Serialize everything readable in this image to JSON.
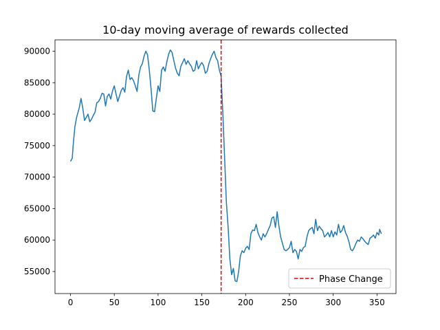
{
  "chart_data": {
    "type": "line",
    "title": "10-day moving average of rewards collected",
    "xlabel": "",
    "ylabel": "",
    "xlim": [
      -17.7,
      371.7
    ],
    "ylim": [
      51500,
      91800
    ],
    "xticks": [
      0,
      50,
      100,
      150,
      200,
      250,
      300,
      350
    ],
    "yticks": [
      55000,
      60000,
      65000,
      70000,
      75000,
      80000,
      85000,
      90000
    ],
    "grid": false,
    "legend": {
      "placement": "lower-right",
      "entries": [
        "Phase Change"
      ]
    },
    "vline": {
      "name": "Phase Change",
      "x": 172,
      "color": "#e60000",
      "style": "dashed"
    },
    "series": [
      {
        "color": "#1f77b4",
        "points": [
          [
            0,
            72500
          ],
          [
            2,
            73000
          ],
          [
            3,
            75000
          ],
          [
            5,
            78000
          ],
          [
            7,
            79500
          ],
          [
            9,
            80500
          ],
          [
            10,
            81000
          ],
          [
            12,
            82500
          ],
          [
            14,
            81000
          ],
          [
            16,
            79000
          ],
          [
            18,
            79500
          ],
          [
            20,
            80000
          ],
          [
            22,
            78800
          ],
          [
            24,
            79200
          ],
          [
            26,
            79800
          ],
          [
            28,
            80300
          ],
          [
            30,
            81800
          ],
          [
            32,
            82000
          ],
          [
            34,
            82500
          ],
          [
            36,
            83300
          ],
          [
            38,
            83200
          ],
          [
            40,
            81300
          ],
          [
            42,
            82800
          ],
          [
            44,
            83200
          ],
          [
            46,
            82400
          ],
          [
            48,
            83700
          ],
          [
            50,
            84500
          ],
          [
            52,
            83200
          ],
          [
            54,
            82000
          ],
          [
            56,
            82900
          ],
          [
            58,
            83800
          ],
          [
            60,
            84200
          ],
          [
            62,
            83500
          ],
          [
            64,
            86000
          ],
          [
            66,
            87000
          ],
          [
            68,
            85500
          ],
          [
            70,
            85800
          ],
          [
            72,
            85300
          ],
          [
            74,
            84500
          ],
          [
            76,
            83600
          ],
          [
            78,
            86200
          ],
          [
            80,
            87500
          ],
          [
            82,
            88000
          ],
          [
            84,
            89200
          ],
          [
            86,
            90000
          ],
          [
            88,
            89400
          ],
          [
            90,
            87000
          ],
          [
            92,
            84000
          ],
          [
            94,
            80500
          ],
          [
            96,
            80400
          ],
          [
            98,
            82500
          ],
          [
            100,
            84500
          ],
          [
            102,
            83600
          ],
          [
            104,
            87000
          ],
          [
            106,
            87500
          ],
          [
            108,
            86800
          ],
          [
            110,
            88300
          ],
          [
            112,
            89500
          ],
          [
            114,
            90200
          ],
          [
            116,
            89800
          ],
          [
            118,
            88500
          ],
          [
            120,
            87300
          ],
          [
            122,
            86500
          ],
          [
            124,
            86100
          ],
          [
            126,
            87600
          ],
          [
            128,
            88200
          ],
          [
            130,
            88800
          ],
          [
            132,
            87900
          ],
          [
            134,
            88500
          ],
          [
            136,
            88000
          ],
          [
            138,
            87600
          ],
          [
            140,
            86800
          ],
          [
            142,
            87000
          ],
          [
            144,
            88500
          ],
          [
            146,
            87200
          ],
          [
            148,
            87800
          ],
          [
            150,
            88200
          ],
          [
            152,
            87700
          ],
          [
            154,
            86500
          ],
          [
            156,
            86800
          ],
          [
            158,
            88000
          ],
          [
            160,
            88800
          ],
          [
            162,
            89500
          ],
          [
            164,
            90000
          ],
          [
            166,
            89000
          ],
          [
            168,
            88500
          ],
          [
            170,
            87000
          ],
          [
            172,
            86000
          ],
          [
            174,
            80000
          ],
          [
            176,
            73000
          ],
          [
            178,
            66000
          ],
          [
            180,
            62000
          ],
          [
            182,
            57000
          ],
          [
            184,
            54500
          ],
          [
            186,
            55500
          ],
          [
            188,
            53500
          ],
          [
            190,
            53400
          ],
          [
            192,
            55000
          ],
          [
            194,
            57500
          ],
          [
            196,
            58300
          ],
          [
            198,
            58000
          ],
          [
            200,
            58700
          ],
          [
            202,
            59000
          ],
          [
            204,
            58500
          ],
          [
            206,
            61000
          ],
          [
            208,
            61600
          ],
          [
            210,
            61500
          ],
          [
            212,
            62500
          ],
          [
            214,
            61200
          ],
          [
            216,
            60500
          ],
          [
            218,
            60000
          ],
          [
            220,
            61000
          ],
          [
            222,
            60500
          ],
          [
            224,
            61000
          ],
          [
            226,
            61700
          ],
          [
            228,
            62300
          ],
          [
            230,
            63500
          ],
          [
            232,
            63700
          ],
          [
            234,
            62000
          ],
          [
            236,
            64500
          ],
          [
            238,
            62200
          ],
          [
            240,
            60500
          ],
          [
            242,
            59500
          ],
          [
            244,
            58500
          ],
          [
            246,
            58300
          ],
          [
            248,
            58500
          ],
          [
            250,
            58800
          ],
          [
            252,
            59800
          ],
          [
            254,
            58000
          ],
          [
            256,
            58500
          ],
          [
            258,
            58200
          ],
          [
            260,
            57000
          ],
          [
            262,
            58500
          ],
          [
            264,
            58200
          ],
          [
            266,
            58800
          ],
          [
            268,
            59000
          ],
          [
            270,
            60500
          ],
          [
            272,
            61500
          ],
          [
            274,
            61800
          ],
          [
            276,
            62000
          ],
          [
            278,
            61000
          ],
          [
            280,
            63300
          ],
          [
            282,
            61500
          ],
          [
            284,
            62200
          ],
          [
            286,
            61800
          ],
          [
            288,
            61500
          ],
          [
            290,
            60500
          ],
          [
            292,
            60800
          ],
          [
            294,
            61200
          ],
          [
            296,
            60500
          ],
          [
            298,
            61500
          ],
          [
            300,
            60500
          ],
          [
            302,
            61300
          ],
          [
            304,
            60800
          ],
          [
            306,
            62500
          ],
          [
            308,
            61200
          ],
          [
            310,
            61500
          ],
          [
            312,
            62300
          ],
          [
            314,
            61200
          ],
          [
            316,
            60600
          ],
          [
            318,
            59700
          ],
          [
            320,
            58500
          ],
          [
            322,
            58300
          ],
          [
            324,
            58800
          ],
          [
            326,
            59500
          ],
          [
            328,
            60000
          ],
          [
            330,
            59800
          ],
          [
            332,
            60500
          ],
          [
            334,
            60200
          ],
          [
            336,
            59800
          ],
          [
            338,
            59500
          ],
          [
            340,
            59300
          ],
          [
            342,
            60300
          ],
          [
            344,
            60500
          ],
          [
            346,
            60800
          ],
          [
            348,
            60300
          ],
          [
            350,
            61200
          ],
          [
            352,
            60800
          ],
          [
            353,
            61700
          ],
          [
            355,
            61000
          ]
        ]
      }
    ]
  }
}
